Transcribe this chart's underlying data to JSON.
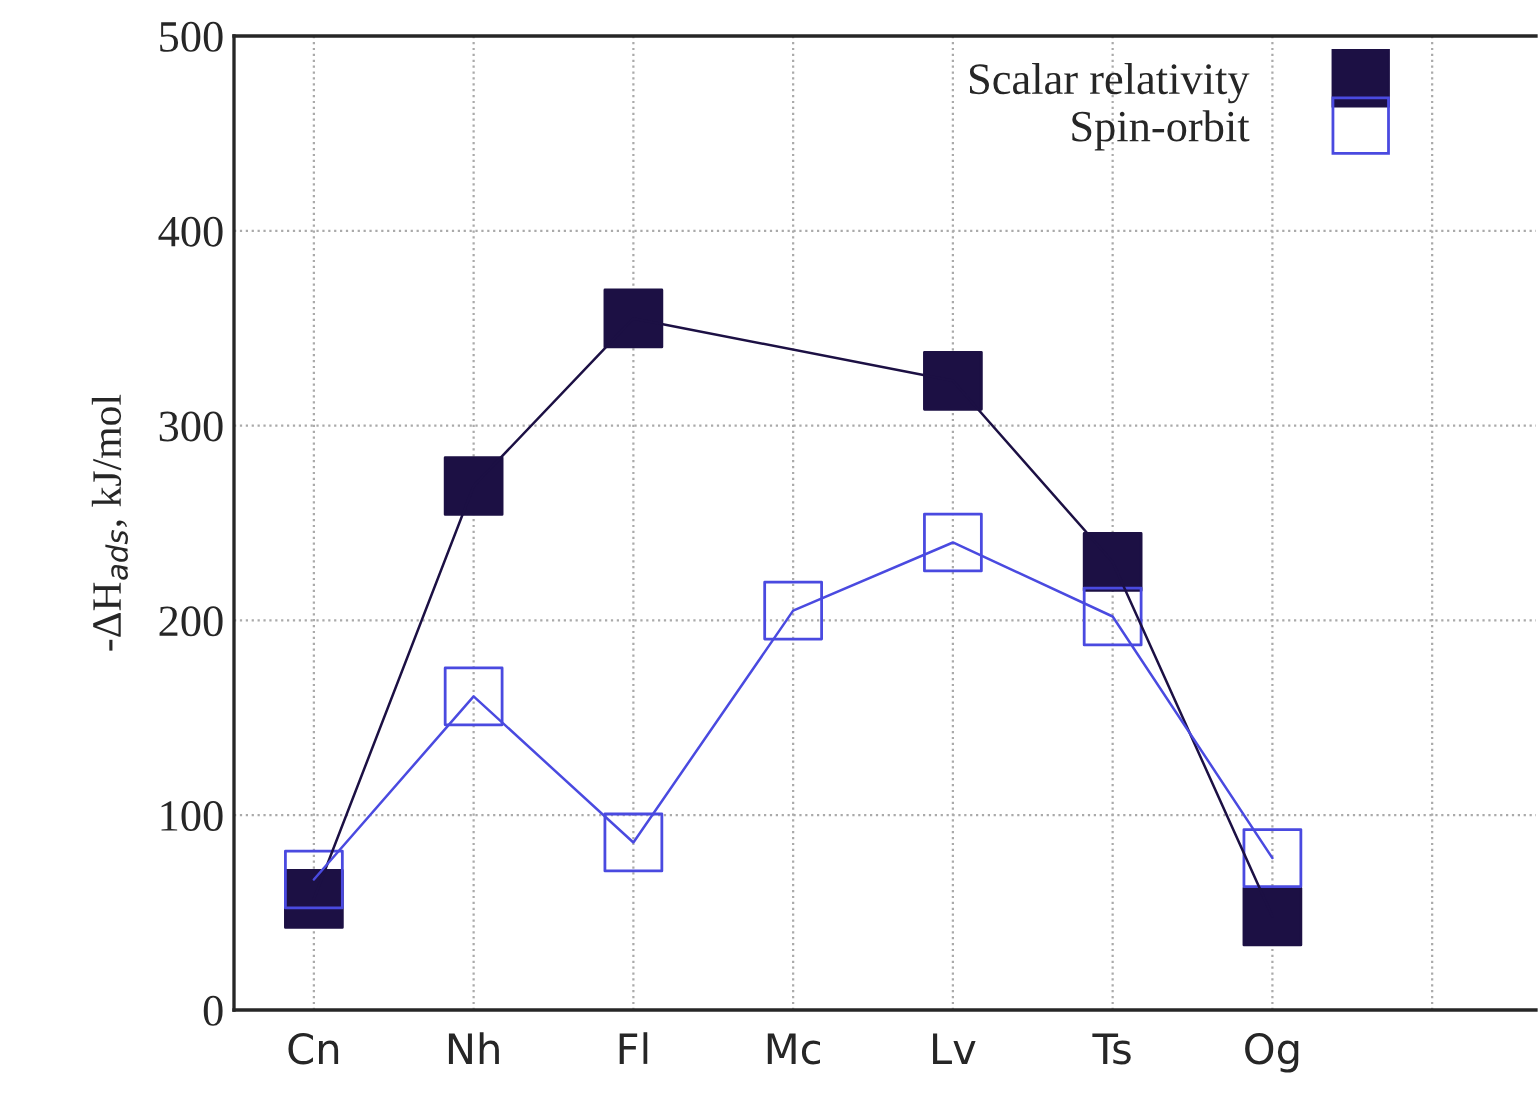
{
  "chart_data": {
    "type": "line",
    "ylabel": "-ΔH$_{ads}$, kJ/mol",
    "categories": [
      "Cn",
      "Nh",
      "Fl",
      "Mc",
      "Lv",
      "Ts",
      "Og",
      null
    ],
    "series": [
      {
        "name": "Scalar relativity",
        "color": "#1c1044",
        "values": [
          57,
          269,
          355,
          null,
          323,
          230,
          48,
          null
        ]
      },
      {
        "name": "Spin-orbit",
        "color": "#4a4ae0",
        "values": [
          67,
          161,
          86,
          205,
          240,
          202,
          78,
          null
        ]
      }
    ],
    "ylim": [
      0,
      500
    ],
    "yticks": [
      0,
      100,
      200,
      300,
      400,
      500
    ],
    "grid": true,
    "legend": "top right",
    "marker": "square",
    "line_style": "solid"
  }
}
